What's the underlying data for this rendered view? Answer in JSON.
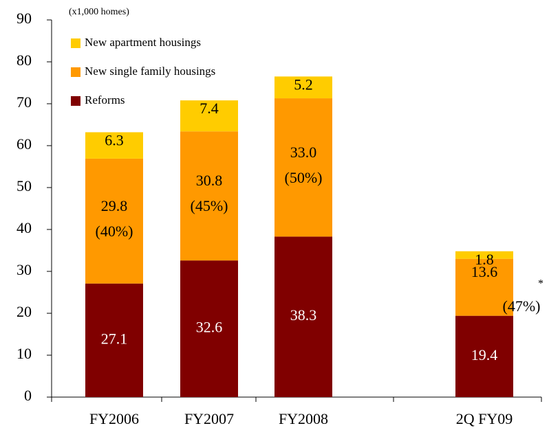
{
  "chart_data": {
    "type": "bar",
    "stacked": true,
    "unit_label": "(x1,000 homes)",
    "categories": [
      "FY2006",
      "FY2007",
      "FY2008",
      "2Q FY09"
    ],
    "series": [
      {
        "name": "Reforms",
        "color": "#800000",
        "values": [
          27.1,
          32.6,
          38.3,
          19.4
        ]
      },
      {
        "name": "New single family housings",
        "color": "#ff9900",
        "values": [
          29.8,
          30.8,
          33.0,
          13.6
        ],
        "value_labels": [
          "29.8",
          "30.8",
          "33.0",
          "13.6"
        ]
      },
      {
        "name": "New apartment housings",
        "color": "#ffcc00",
        "values": [
          6.3,
          7.4,
          5.2,
          1.8
        ]
      }
    ],
    "share_labels": [
      "(40%)",
      "(45%)",
      "(50%)",
      "(47%)"
    ],
    "footnote_mark": "*",
    "ylim": [
      0,
      90
    ],
    "yticks": [
      0,
      10,
      20,
      30,
      40,
      50,
      60,
      70,
      80,
      90
    ]
  }
}
